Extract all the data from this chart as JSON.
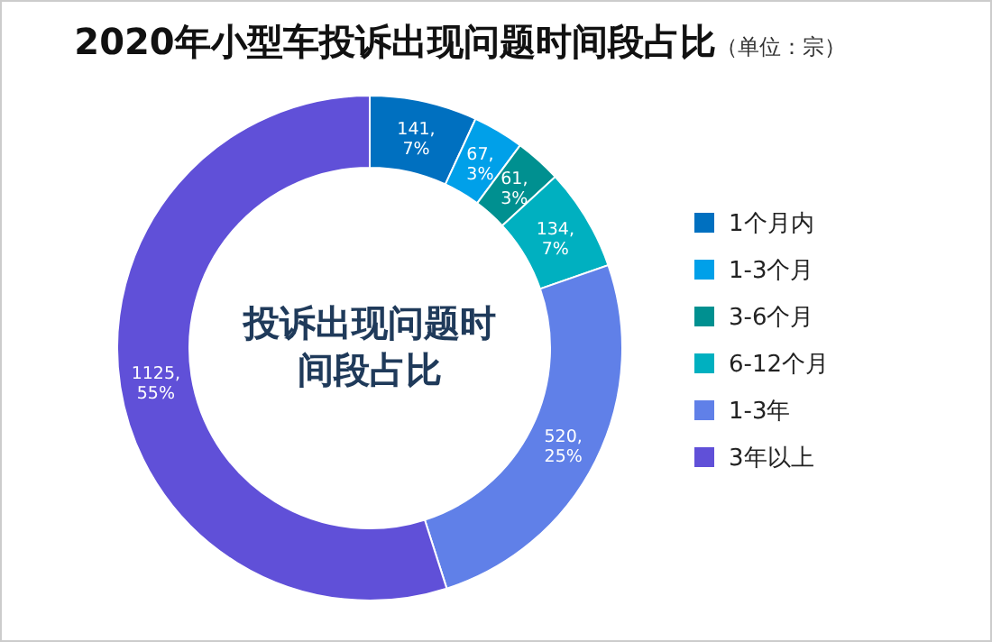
{
  "chart_data": {
    "type": "donut",
    "title": "2020年小型车投诉出现问题时间段占比",
    "subtitle": "（单位：宗）",
    "categories": [
      "1个月内",
      "1-3个月",
      "3-6个月",
      "6-12个月",
      "1-3年",
      "3年以上"
    ],
    "values": [
      141,
      67,
      61,
      134,
      520,
      1125
    ],
    "colors": [
      "#0070c0",
      "#00a0e9",
      "#009090",
      "#00b0c0",
      "#6080e8",
      "#6050d8"
    ],
    "value_labels": [
      "141, 7%",
      "67, 3%",
      "61, 3%",
      "134, 7%",
      "520, 25%",
      "1125, 55%"
    ],
    "annotations": [
      "投诉出现问题时间段占比"
    ],
    "legend": "right"
  }
}
